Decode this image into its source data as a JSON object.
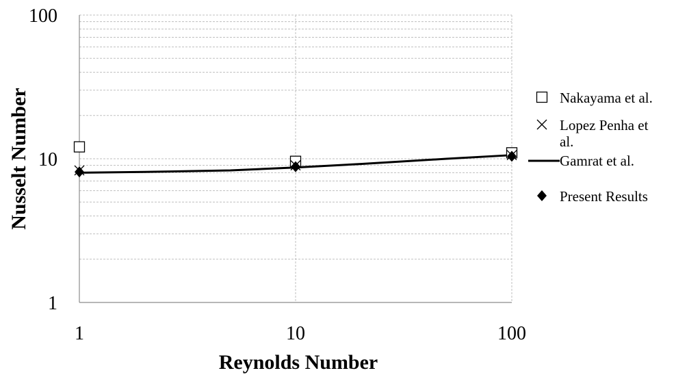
{
  "chart_data": {
    "type": "line",
    "title": "",
    "xlabel": "Reynolds Number",
    "ylabel": "Nusselt Number",
    "x_scale": "log",
    "y_scale": "log",
    "xlim": [
      1,
      100
    ],
    "ylim": [
      1,
      100
    ],
    "x_ticks": [
      "1",
      "10",
      "100"
    ],
    "y_ticks": [
      "1",
      "10",
      "100"
    ],
    "grid": true,
    "legend_position": "right",
    "series": [
      {
        "name": "Nakayama et al.",
        "kind": "marker",
        "marker": "open-square",
        "color": "#000000",
        "x": [
          1,
          10,
          100
        ],
        "y": [
          12.1,
          9.6,
          11.0
        ]
      },
      {
        "name": "Lopez Penha et al.",
        "kind": "marker",
        "marker": "x",
        "color": "#000000",
        "x": [
          1,
          10,
          100
        ],
        "y": [
          8.3,
          9.0,
          10.6
        ]
      },
      {
        "name": "Gamrat et al.",
        "kind": "line",
        "color": "#000000",
        "x": [
          1,
          2,
          5,
          10,
          20,
          50,
          100
        ],
        "y": [
          8.0,
          8.1,
          8.3,
          8.7,
          9.2,
          10.0,
          10.6
        ]
      },
      {
        "name": "Present Results",
        "kind": "marker",
        "marker": "filled-diamond",
        "color": "#000000",
        "x": [
          1,
          10,
          100
        ],
        "y": [
          8.1,
          8.8,
          10.4
        ]
      }
    ]
  }
}
